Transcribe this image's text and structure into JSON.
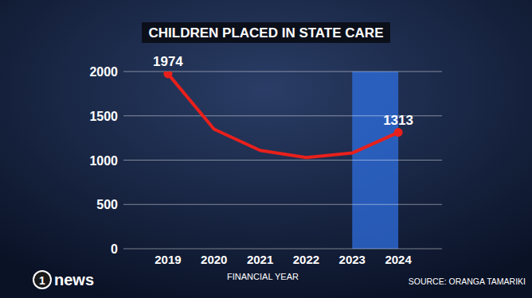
{
  "chart_data": {
    "type": "line",
    "title": "CHILDREN PLACED IN STATE CARE",
    "x_label": "FINANCIAL YEAR",
    "source": "SOURCE: ORANGA TAMARIKI",
    "logo": {
      "badge": "1",
      "text": "news"
    },
    "categories": [
      "2019",
      "2020",
      "2021",
      "2022",
      "2023",
      "2024"
    ],
    "values": [
      1974,
      1350,
      1110,
      1030,
      1080,
      1313
    ],
    "value_labels": [
      "1974",
      null,
      null,
      null,
      null,
      "1313"
    ],
    "highlight": {
      "start": "2023",
      "end": "2024"
    },
    "color": "#e8201c",
    "marker": "circle",
    "ylim": [
      0,
      2000
    ],
    "yticks": [
      0,
      500,
      1000,
      1500,
      2000
    ],
    "grid": true
  }
}
